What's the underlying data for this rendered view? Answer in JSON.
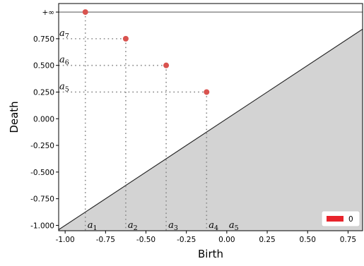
{
  "chart_data": {
    "type": "scatter",
    "title": "",
    "xlabel": "Birth",
    "ylabel": "Death",
    "xlim": [
      -1.04,
      0.84
    ],
    "ylim": [
      -1.05,
      1.08
    ],
    "x_ticks": [
      -1.0,
      -0.75,
      -0.5,
      -0.25,
      0.0,
      0.25,
      0.5,
      0.75
    ],
    "x_tick_labels": [
      "-1.00",
      "-0.75",
      "-0.50",
      "-0.25",
      "0.00",
      "0.25",
      "0.50",
      "0.75"
    ],
    "y_ticks": [
      -1.0,
      -0.75,
      -0.5,
      -0.25,
      0.0,
      0.25,
      0.5,
      0.75
    ],
    "y_tick_labels": [
      "-1.000",
      "-0.750",
      "-0.500",
      "-0.250",
      "0.000",
      "0.250",
      "0.500",
      "0.750"
    ],
    "infinity": {
      "label": "+∞",
      "y": 1.0
    },
    "series": [
      {
        "name": "0",
        "color": "#e8232b",
        "marker_color": "#d9534f",
        "points": [
          {
            "x": -0.875,
            "y": 1.0,
            "infinite": true
          },
          {
            "x": -0.625,
            "y": 0.75
          },
          {
            "x": -0.375,
            "y": 0.5
          },
          {
            "x": -0.125,
            "y": 0.25
          }
        ]
      }
    ],
    "x_annotations": [
      {
        "base": "a",
        "sub": "1",
        "x": -0.875
      },
      {
        "base": "a",
        "sub": "2",
        "x": -0.625
      },
      {
        "base": "a",
        "sub": "3",
        "x": -0.375
      },
      {
        "base": "a",
        "sub": "4",
        "x": -0.125
      },
      {
        "base": "a",
        "sub": "5",
        "x": 0.0
      }
    ],
    "y_annotations": [
      {
        "base": "a",
        "sub": "7",
        "y": 0.75
      },
      {
        "base": "a",
        "sub": "6",
        "y": 0.5
      },
      {
        "base": "a",
        "sub": "5",
        "y": 0.25
      }
    ],
    "diagonal_fill_color": "#d3d3d3",
    "guide_line_color": "#888888",
    "grid": false,
    "legend": {
      "position": "bottom-right",
      "entries": [
        "0"
      ]
    }
  }
}
